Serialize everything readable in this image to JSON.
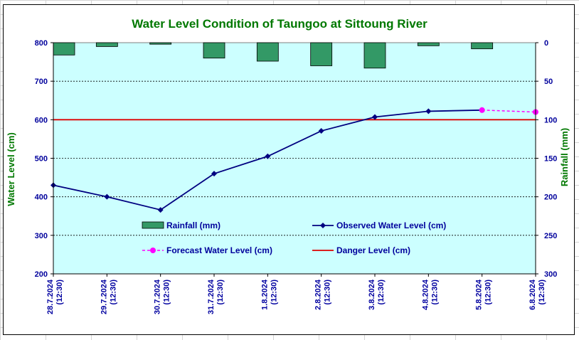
{
  "chart_data": {
    "type": "line",
    "title": "Water Level Condition of Taungoo at  Sittoung River",
    "ylabel": "Water Level (cm)",
    "y2label": "Rainfall (mm)",
    "ylim": [
      200,
      800
    ],
    "yticks": [
      200,
      300,
      400,
      500,
      600,
      700,
      800
    ],
    "y2lim": [
      0,
      300
    ],
    "y2ticks": [
      0,
      50,
      100,
      150,
      200,
      250,
      300
    ],
    "y2_reversed": true,
    "grid": "horizontal dashed",
    "plot_background": "#ccffff",
    "categories": [
      [
        "28.7.2024",
        "(12:30)"
      ],
      [
        "29.7.2024",
        "(12:30)"
      ],
      [
        "30.7.2024",
        "(12:30)"
      ],
      [
        "31.7.2024",
        "(12:30)"
      ],
      [
        "1.8.2024",
        "(12:30)"
      ],
      [
        "2.8.2024",
        "(12:30)"
      ],
      [
        "3.8.2024",
        "(12:30)"
      ],
      [
        "4.8.2024",
        "(12:30)"
      ],
      [
        "5.8.2024",
        "(12:30)"
      ],
      [
        "6.8.2024",
        "(12:30)"
      ]
    ],
    "series": [
      {
        "name": "Rainfall (mm)",
        "kind": "bar",
        "axis": "y2",
        "color": "#339966",
        "values": [
          16,
          5,
          2,
          20,
          24,
          30,
          33,
          4,
          8,
          null
        ]
      },
      {
        "name": "Observed Water Level (cm)",
        "kind": "line",
        "axis": "y",
        "color": "#000080",
        "marker": "diamond",
        "values": [
          430,
          400,
          366,
          460,
          505,
          571,
          607,
          622,
          625,
          null
        ]
      },
      {
        "name": "Forecast Water Level (cm)",
        "kind": "line",
        "axis": "y",
        "color": "#ff00ff",
        "dashed": true,
        "marker": "circle",
        "values": [
          null,
          null,
          null,
          null,
          null,
          null,
          null,
          null,
          625,
          620
        ]
      },
      {
        "name": "Danger Level (cm)",
        "kind": "line",
        "axis": "y",
        "color": "#dd0000",
        "values": [
          600,
          600,
          600,
          600,
          600,
          600,
          600,
          600,
          600,
          600
        ]
      }
    ],
    "legend_order": [
      "Rainfall (mm)",
      "Observed Water Level (cm)",
      "Forecast Water Level (cm)",
      "Danger Level (cm)"
    ],
    "legend_placement": "inside plot, lower-center, two columns"
  }
}
